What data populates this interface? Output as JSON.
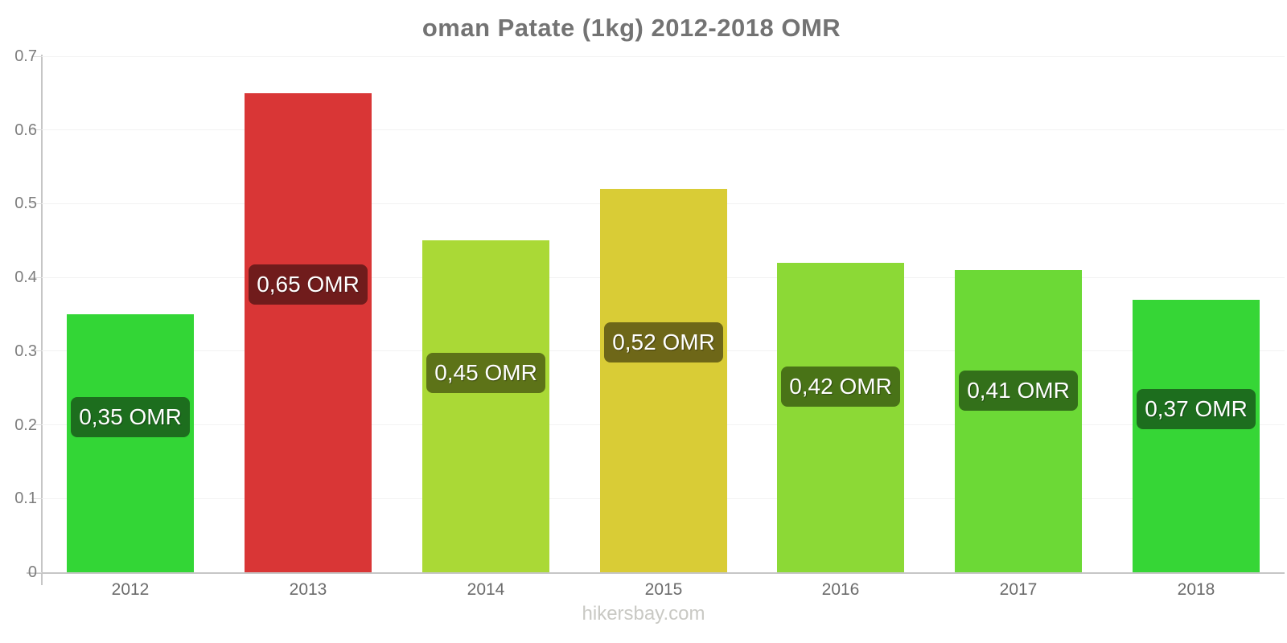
{
  "chart_data": {
    "type": "bar",
    "title": "oman Patate (1kg) 2012-2018 OMR",
    "footer": "hikersbay.com",
    "categories": [
      "2012",
      "2013",
      "2014",
      "2015",
      "2016",
      "2017",
      "2018"
    ],
    "values": [
      0.35,
      0.65,
      0.45,
      0.52,
      0.42,
      0.41,
      0.37
    ],
    "value_labels": [
      "0,35 OMR",
      "0,65 OMR",
      "0,45 OMR",
      "0,52 OMR",
      "0,42 OMR",
      "0,41 OMR",
      "0,37 OMR"
    ],
    "bar_colors": [
      "#33d636",
      "#d93636",
      "#aad936",
      "#d9cc36",
      "#8cd936",
      "#6cd936",
      "#36d636"
    ],
    "label_colors": [
      "#1d6e1e",
      "#701c1c",
      "#5d7318",
      "#6e6718",
      "#497317",
      "#33701a",
      "#1d6e1e"
    ],
    "xlabel": "",
    "ylabel": "",
    "ylim": [
      0,
      0.7
    ],
    "yticks": [
      {
        "value": 0,
        "label": "0"
      },
      {
        "value": 0.1,
        "label": "0.1"
      },
      {
        "value": 0.2,
        "label": "0.2"
      },
      {
        "value": 0.3,
        "label": "0.3"
      },
      {
        "value": 0.4,
        "label": "0.4"
      },
      {
        "value": 0.5,
        "label": "0.5"
      },
      {
        "value": 0.6,
        "label": "0.6"
      },
      {
        "value": 0.7,
        "label": "0.7"
      }
    ],
    "grid": true,
    "legend": "none",
    "colors": {
      "title": "#737373",
      "axis": "#c6c6c6",
      "grid": "#f2f2f2",
      "tick_dash": "#dcdcdc",
      "tick_label": "#7d7d7d",
      "category_label": "#6b6b6b",
      "watermark": "#c9c9c4",
      "value_text": "#ffffff"
    }
  }
}
